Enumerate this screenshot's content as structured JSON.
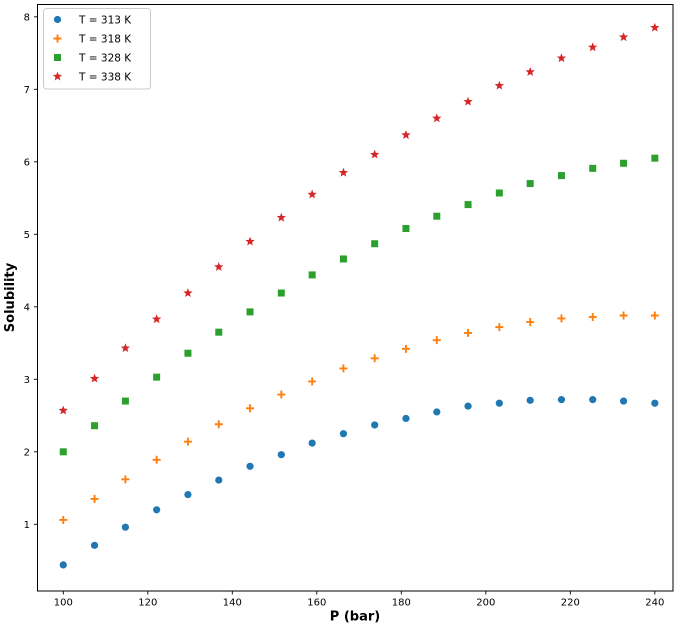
{
  "figure": {
    "background": "#ffffff",
    "spine_color": "#000000"
  },
  "chart_data": {
    "type": "scatter",
    "title": "",
    "xlabel": "P (bar)",
    "ylabel": "Solubility",
    "xlim": [
      93.9,
      244.3
    ],
    "ylim": [
      0.08,
      8.17
    ],
    "xticks": [
      100,
      120,
      140,
      160,
      180,
      200,
      220,
      240
    ],
    "yticks": [
      1,
      2,
      3,
      4,
      5,
      6,
      7,
      8
    ],
    "grid": false,
    "legend_position": "upper-left",
    "x": [
      100.0,
      107.4,
      114.7,
      122.1,
      129.5,
      136.8,
      144.2,
      151.6,
      158.9,
      166.3,
      173.7,
      181.1,
      188.4,
      195.8,
      203.2,
      210.5,
      217.9,
      225.3,
      232.6,
      240.0
    ],
    "series": [
      {
        "name": "T = 313 K",
        "marker": "circle",
        "color": "#1f77b4",
        "values": [
          0.44,
          0.71,
          0.96,
          1.2,
          1.41,
          1.61,
          1.8,
          1.96,
          2.12,
          2.25,
          2.37,
          2.46,
          2.55,
          2.63,
          2.67,
          2.71,
          2.72,
          2.72,
          2.7,
          2.67
        ]
      },
      {
        "name": "T = 318 K",
        "marker": "plus",
        "color": "#ff7f0e",
        "values": [
          1.06,
          1.35,
          1.62,
          1.89,
          2.14,
          2.38,
          2.6,
          2.79,
          2.97,
          3.15,
          3.29,
          3.42,
          3.54,
          3.64,
          3.72,
          3.79,
          3.84,
          3.86,
          3.88,
          3.88
        ]
      },
      {
        "name": "T = 328 K",
        "marker": "square",
        "color": "#2ca02c",
        "values": [
          2.0,
          2.36,
          2.7,
          3.03,
          3.36,
          3.65,
          3.93,
          4.19,
          4.44,
          4.66,
          4.87,
          5.08,
          5.25,
          5.41,
          5.57,
          5.7,
          5.81,
          5.91,
          5.98,
          6.05
        ]
      },
      {
        "name": "T = 338 K",
        "marker": "star",
        "color": "#d62728",
        "values": [
          2.57,
          3.01,
          3.43,
          3.83,
          4.19,
          4.55,
          4.9,
          5.23,
          5.55,
          5.85,
          6.1,
          6.37,
          6.6,
          6.83,
          7.05,
          7.24,
          7.43,
          7.58,
          7.72,
          7.85
        ]
      }
    ]
  }
}
